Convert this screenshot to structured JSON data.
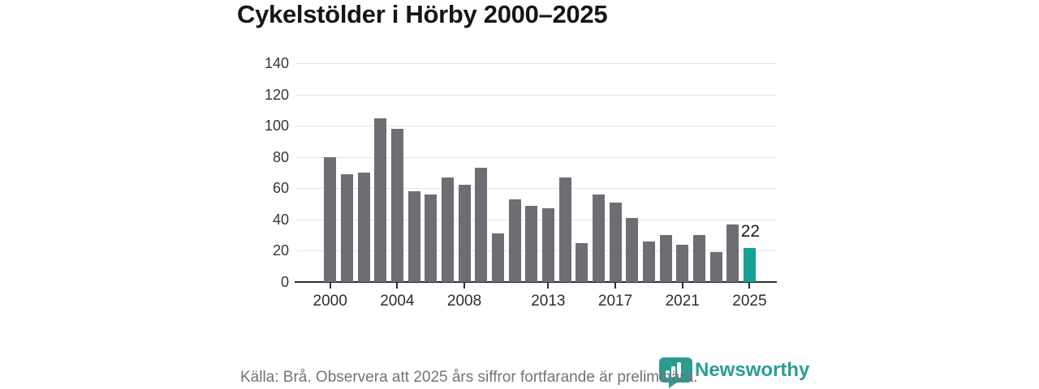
{
  "title": "Cykelstölder i Hörby 2000–2025",
  "colors": {
    "bar": "#6e6d73",
    "highlight": "#16a296",
    "grid": "#e4e4e6",
    "axis": "#2d2d2d",
    "title_text": "#15151c",
    "tick_text": "#35353b",
    "value_label_text": "#1b1b22",
    "footer_text": "#73737b",
    "brand_teal": "#2a9d93"
  },
  "chart_data": {
    "type": "bar",
    "title": "Cykelstölder i Hörby 2000–2025",
    "xlabel": "",
    "ylabel": "",
    "x": [
      2000,
      2001,
      2002,
      2003,
      2004,
      2005,
      2006,
      2007,
      2008,
      2009,
      2010,
      2011,
      2012,
      2013,
      2014,
      2015,
      2016,
      2017,
      2018,
      2019,
      2020,
      2021,
      2022,
      2023,
      2024,
      2025
    ],
    "values": [
      80,
      69,
      70,
      105,
      98,
      58,
      56,
      67,
      62,
      73,
      31,
      53,
      49,
      47,
      67,
      25,
      56,
      51,
      41,
      26,
      30,
      24,
      30,
      19,
      37,
      22
    ],
    "highlight_index": 25,
    "highlight_label": "22",
    "ylim": [
      0,
      140
    ],
    "y_ticks": [
      0,
      20,
      40,
      60,
      80,
      100,
      120,
      140
    ],
    "x_tick_labels": [
      "2000",
      "2004",
      "2008",
      "2013",
      "2017",
      "2021",
      "2025"
    ],
    "grid": true,
    "legend": false
  },
  "footer": {
    "source_note": "Källa: Brå. Observera att 2025 års siffror fortfarande är preliminära.",
    "brand": "Newsworthy"
  },
  "icons": {
    "brand_logo": "newsworthy-bubble-barchart-icon"
  }
}
